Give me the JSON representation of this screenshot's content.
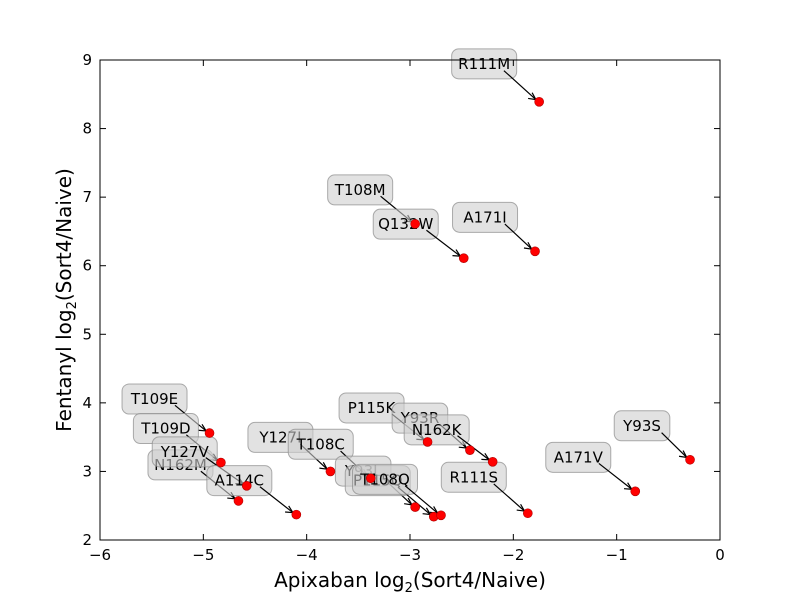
{
  "chart_data": {
    "type": "scatter",
    "title": "",
    "xlabel": "Apixaban log",
    "xlabel_sub": "2",
    "xlabel_suffix": "(Sort4/Naive)",
    "ylabel": "Fentanyl log",
    "ylabel_sub": "2",
    "ylabel_suffix": "(Sort4/Naive)",
    "xlim": [
      -6,
      0
    ],
    "ylim": [
      2,
      9
    ],
    "xticks": [
      -6,
      -5,
      -4,
      -3,
      -2,
      -1,
      0
    ],
    "xtick_labels": [
      "−6",
      "−5",
      "−4",
      "−3",
      "−2",
      "−1",
      "0"
    ],
    "yticks": [
      2,
      3,
      4,
      5,
      6,
      7,
      8,
      9
    ],
    "ytick_labels": [
      "2",
      "3",
      "4",
      "5",
      "6",
      "7",
      "8",
      "9"
    ],
    "grid": false,
    "marker_color": "#ff0000",
    "points": [
      {
        "label": "R111M",
        "x": -1.75,
        "y": 8.39
      },
      {
        "label": "T108M",
        "x": -2.95,
        "y": 6.61
      },
      {
        "label": "Q132W",
        "x": -2.48,
        "y": 6.11
      },
      {
        "label": "A171I",
        "x": -1.79,
        "y": 6.21
      },
      {
        "label": "T109E",
        "x": -4.94,
        "y": 3.56
      },
      {
        "label": "T109D",
        "x": -4.83,
        "y": 3.13
      },
      {
        "label": "N162M",
        "x": -4.66,
        "y": 2.57
      },
      {
        "label": "Y127V",
        "x": -4.58,
        "y": 2.79
      },
      {
        "label": "A114C",
        "x": -4.1,
        "y": 2.37
      },
      {
        "label": "Y127I",
        "x": -3.77,
        "y": 3.0
      },
      {
        "label": "T108C",
        "x": -3.38,
        "y": 2.9
      },
      {
        "label": "Y93L",
        "x": -2.95,
        "y": 2.48
      },
      {
        "label": "P115Q",
        "x": -2.77,
        "y": 2.34
      },
      {
        "label": "T108Q",
        "x": -2.7,
        "y": 2.36
      },
      {
        "label": "P115K",
        "x": -2.83,
        "y": 3.43
      },
      {
        "label": "Y93R",
        "x": -2.42,
        "y": 3.31
      },
      {
        "label": "N162K",
        "x": -2.2,
        "y": 3.14
      },
      {
        "label": "R111S",
        "x": -1.86,
        "y": 2.39
      },
      {
        "label": "A171V",
        "x": -0.82,
        "y": 2.71
      },
      {
        "label": "Y93S",
        "x": -0.29,
        "y": 3.17
      }
    ]
  }
}
